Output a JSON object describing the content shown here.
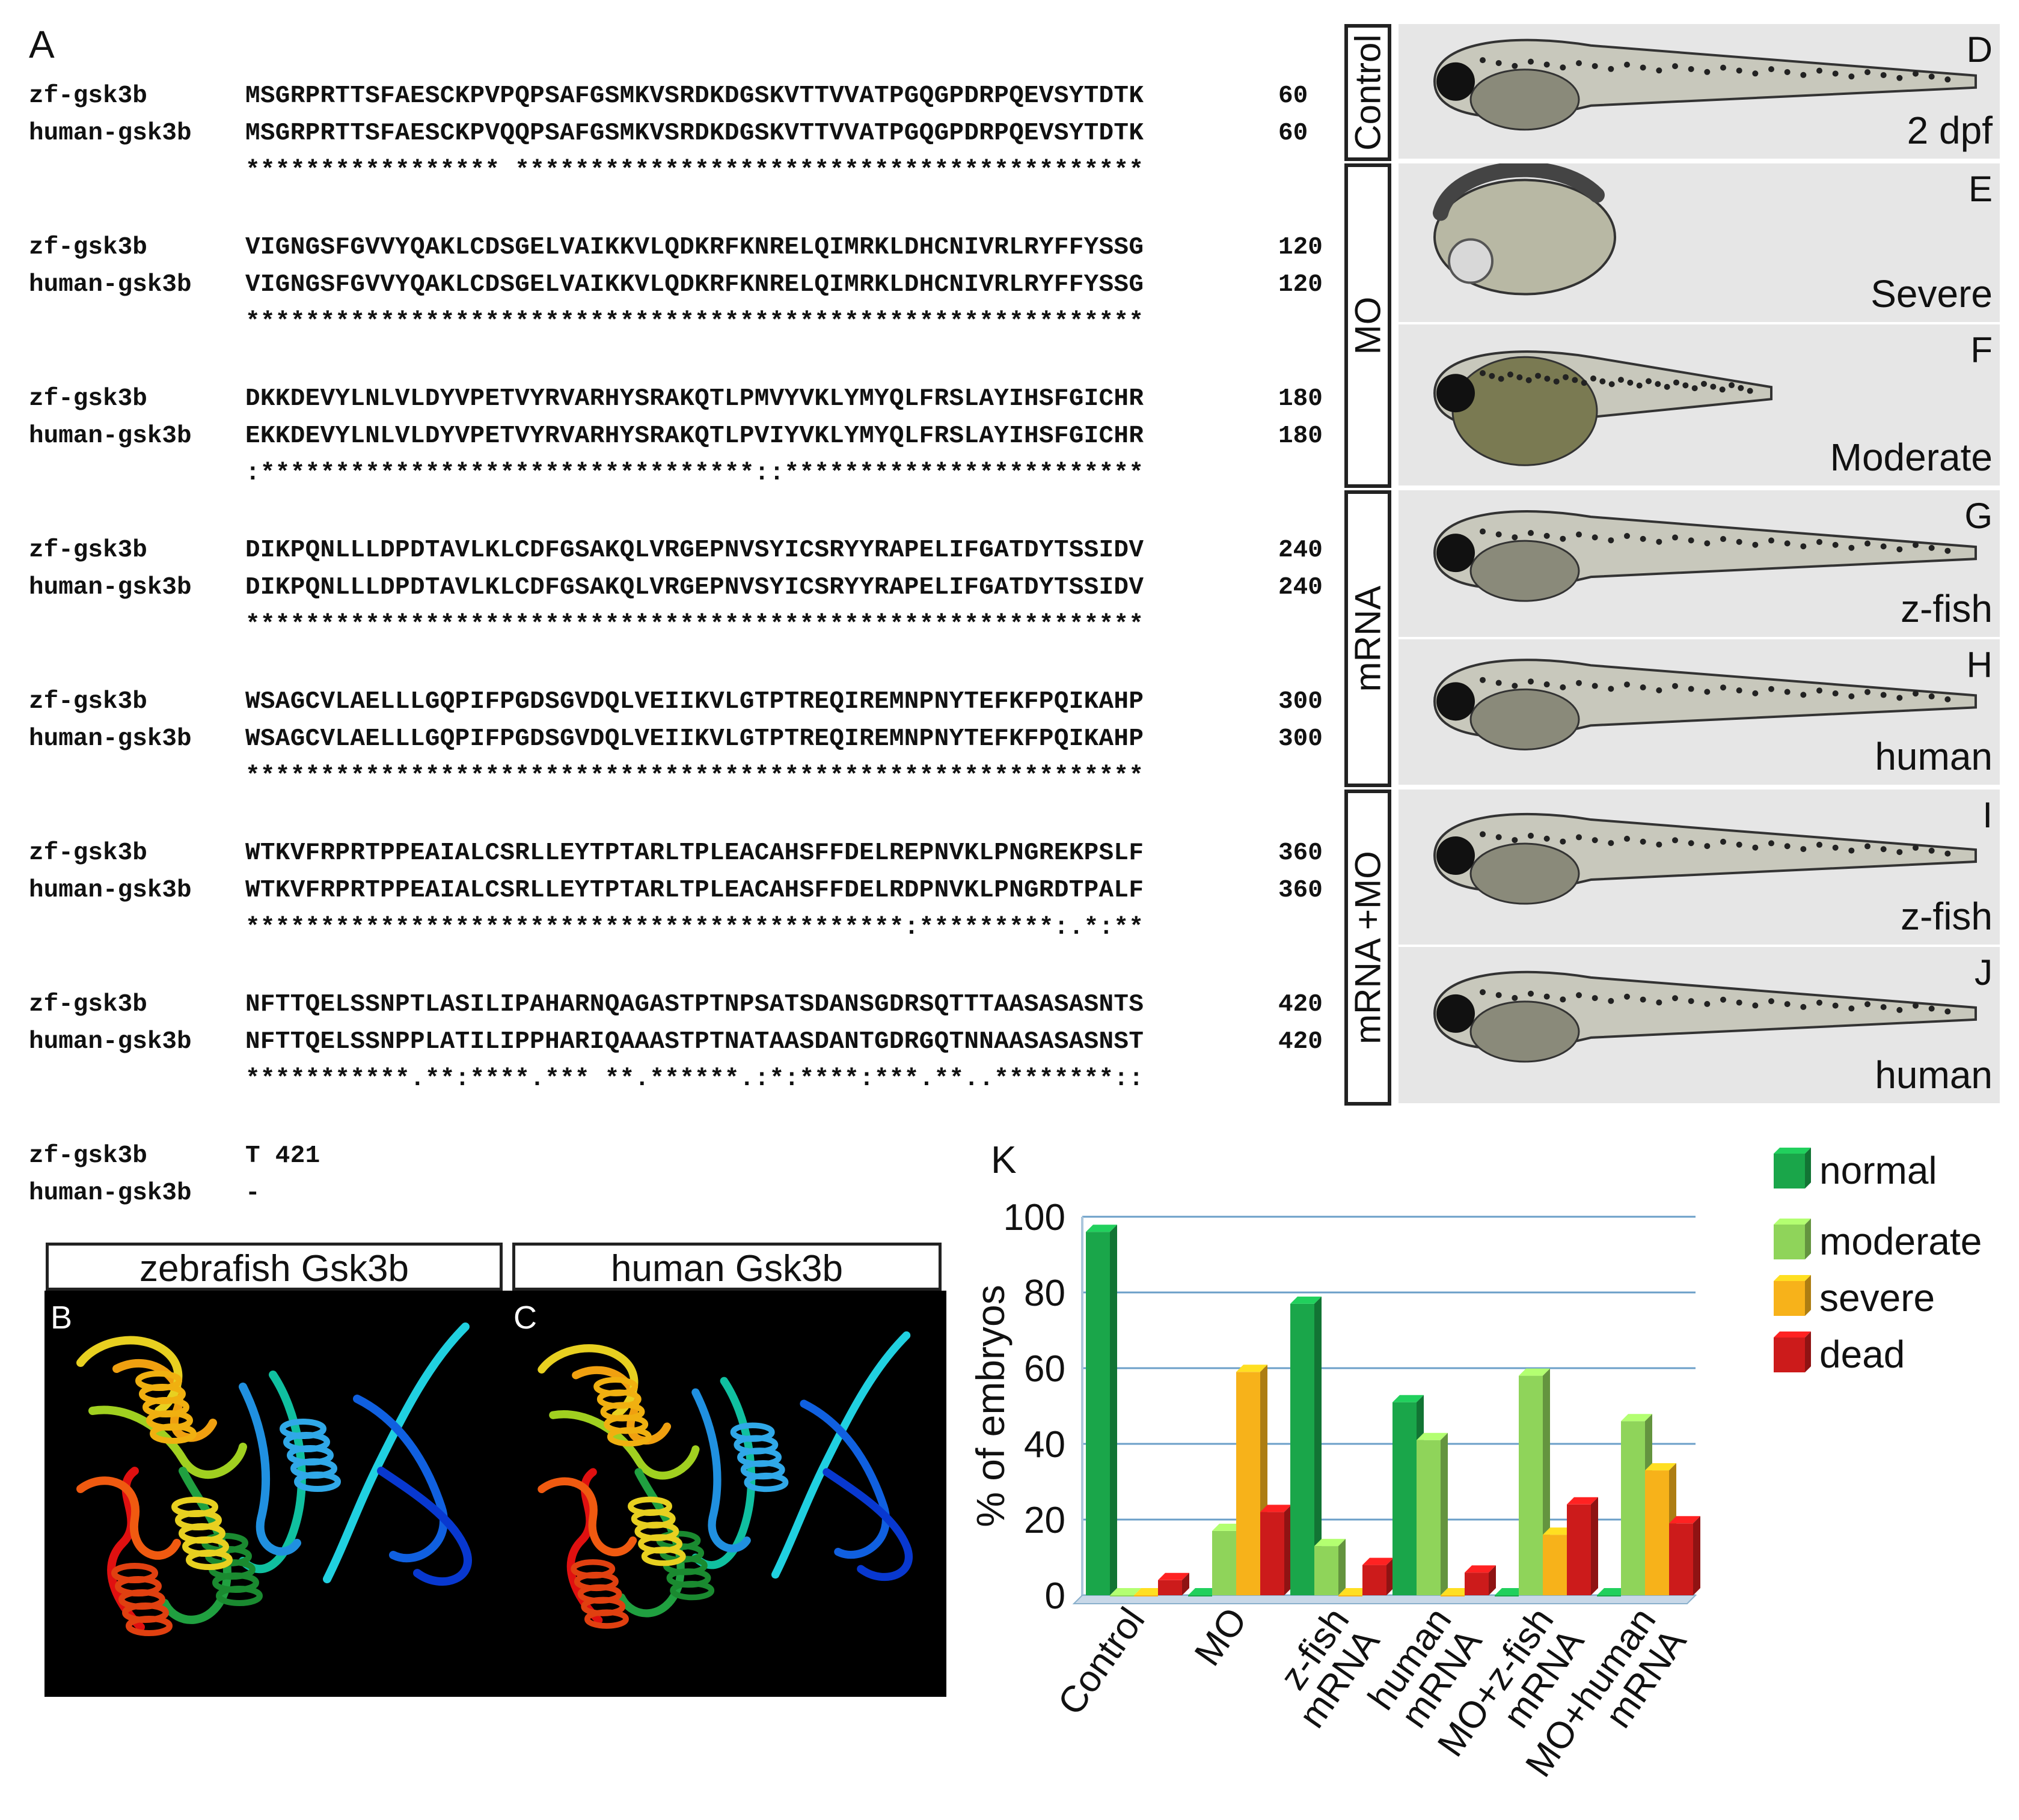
{
  "panels": {
    "a": "A",
    "b": "B",
    "c": "C",
    "d": "D",
    "e": "E",
    "f": "F",
    "g": "G",
    "h": "H",
    "i": "I",
    "j": "J",
    "k": "K"
  },
  "alignment": {
    "zf_name": "zf-gsk3b",
    "human_name": "human-gsk3b",
    "blocks": [
      {
        "zf": "MSGRPRTTSFAESCKPVPQPSAFGSMKVSRDKDGSKVTTVVATPGQGPDRPQEVSYTDTK",
        "human": "MSGRPRTTSFAESCKPVQQPSAFGSMKVSRDKDGSKVTTVVATPGQGPDRPQEVSYTDTK",
        "cons": "***************** ******************************************",
        "num": "60"
      },
      {
        "zf": "VIGNGSFGVVYQAKLCDSGELVAIKKVLQDKRFKNRELQIMRKLDHCNIVRLRYFFYSSG",
        "human": "VIGNGSFGVVYQAKLCDSGELVAIKKVLQDKRFKNRELQIMRKLDHCNIVRLRYFFYSSG",
        "cons": "************************************************************",
        "num": "120"
      },
      {
        "zf": "DKKDEVYLNLVLDYVPETVYRVARHYSRAKQTLPMVYVKLYMYQLFRSLAYIHSFGICHR",
        "human": "EKKDEVYLNLVLDYVPETVYRVARHYSRAKQTLPVIYVKLYMYQLFRSLAYIHSFGICHR",
        "cons": ":*********************************::************************",
        "num": "180"
      },
      {
        "zf": "DIKPQNLLLDPDTAVLKLCDFGSAKQLVRGEPNVSYICSRYYRAPELIFGATDYTSSIDV",
        "human": "DIKPQNLLLDPDTAVLKLCDFGSAKQLVRGEPNVSYICSRYYRAPELIFGATDYTSSIDV",
        "cons": "************************************************************",
        "num": "240"
      },
      {
        "zf": "WSAGCVLAELLLGQPIFPGDSGVDQLVEIIKVLGTPTREQIREMNPNYTEFKFPQIKAHP",
        "human": "WSAGCVLAELLLGQPIFPGDSGVDQLVEIIKVLGTPTREQIREMNPNYTEFKFPQIKAHP",
        "cons": "************************************************************",
        "num": "300"
      },
      {
        "zf": "WTKVFRPRTPPEAIALCSRLLEYTPTARLTPLEACAHSFFDELREPNVKLPNGREKPSLF",
        "human": "WTKVFRPRTPPEAIALCSRLLEYTPTARLTPLEACAHSFFDELRDPNVKLPNGRDTPALF",
        "cons": "********************************************:*********:.*:**",
        "num": "360"
      },
      {
        "zf": "NFTTQELSSNPTLASILIPAHARNQAGASTPTNPSATSDANSGDRSQTTTAASASASNTS",
        "human": "NFTTQELSSNPPLATILIPPHARIQAAASTPTNATAASDANTGDRGQTNNAASASASNST",
        "cons": "***********.**:****.*** **.******.:*:****:***.**..********::",
        "num": "420"
      }
    ],
    "tail": {
      "zf": "T 421",
      "human": "-"
    }
  },
  "structures": {
    "zebrafish_title": "zebrafish Gsk3b",
    "human_title": "human Gsk3b"
  },
  "embryo_panel": {
    "groups": [
      "Control",
      "MO",
      "mRNA",
      "mRNA +MO"
    ],
    "embryos": [
      {
        "letter": "D",
        "condition": "2 dpf",
        "phenotype": "normal"
      },
      {
        "letter": "E",
        "condition": "Severe",
        "phenotype": "severe"
      },
      {
        "letter": "F",
        "condition": "Moderate",
        "phenotype": "moderate"
      },
      {
        "letter": "G",
        "condition": "z-fish",
        "phenotype": "normal"
      },
      {
        "letter": "H",
        "condition": "human",
        "phenotype": "normal"
      },
      {
        "letter": "I",
        "condition": "z-fish",
        "phenotype": "normal"
      },
      {
        "letter": "J",
        "condition": "human",
        "phenotype": "normal"
      }
    ]
  },
  "chart_data": {
    "type": "bar",
    "title": "",
    "xlabel": "",
    "ylabel": "% of embryos",
    "ylim": [
      0,
      100
    ],
    "yticks": [
      "0",
      "20",
      "40",
      "60",
      "80",
      "100"
    ],
    "grid": true,
    "legend_position": "right",
    "categories": [
      "Control",
      "MO",
      "z-fish mRNA",
      "human mRNA",
      "MO+z-fish mRNA",
      "MO+human mRNA"
    ],
    "series": [
      {
        "name": "normal",
        "color": "#1aa64a",
        "values": [
          96,
          0,
          77,
          51,
          0,
          0
        ]
      },
      {
        "name": "moderate",
        "color": "#8fd45a",
        "values": [
          0,
          17,
          13,
          41,
          58,
          46
        ]
      },
      {
        "name": "severe",
        "color": "#f7b21a",
        "values": [
          0,
          59,
          0,
          0,
          16,
          33
        ]
      },
      {
        "name": "dead",
        "color": "#cc1b1b",
        "values": [
          4,
          22,
          8,
          6,
          24,
          19
        ]
      }
    ]
  }
}
